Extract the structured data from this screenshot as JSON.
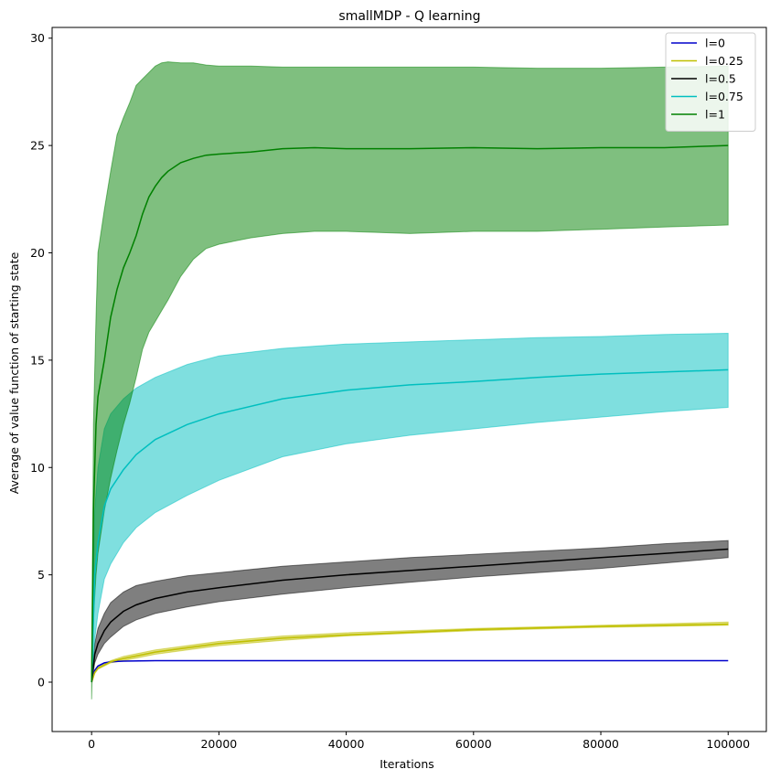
{
  "chart_data": {
    "type": "line",
    "title": "smallMDP - Q learning",
    "xlabel": "Iterations",
    "ylabel": "Average of value function of starting state",
    "xlim": [
      -6200,
      106000
    ],
    "ylim": [
      -2.3,
      30.5
    ],
    "xticks": [
      0,
      20000,
      40000,
      60000,
      80000,
      100000
    ],
    "yticks": [
      0,
      5,
      10,
      15,
      20,
      25,
      30
    ],
    "legend_position": "top-right",
    "grid": false,
    "series": [
      {
        "name": "l=0",
        "color": "#0000cc",
        "x": [
          0,
          500,
          1000,
          2000,
          3000,
          5000,
          10000,
          20000,
          50000,
          100000
        ],
        "mean": [
          0,
          0.55,
          0.75,
          0.9,
          0.95,
          0.98,
          1.0,
          1.0,
          1.0,
          1.0
        ],
        "lower": [
          0,
          0.55,
          0.75,
          0.9,
          0.95,
          0.98,
          1.0,
          1.0,
          1.0,
          1.0
        ],
        "upper": [
          0,
          0.55,
          0.75,
          0.9,
          0.95,
          0.98,
          1.0,
          1.0,
          1.0,
          1.0
        ]
      },
      {
        "name": "l=0.25",
        "color": "#bfbf00",
        "x": [
          0,
          500,
          1000,
          3000,
          5000,
          10000,
          20000,
          30000,
          40000,
          60000,
          80000,
          100000
        ],
        "mean": [
          0,
          0.45,
          0.65,
          0.95,
          1.1,
          1.4,
          1.8,
          2.05,
          2.2,
          2.45,
          2.6,
          2.7
        ],
        "lower": [
          0,
          0.4,
          0.6,
          0.9,
          1.0,
          1.3,
          1.7,
          1.95,
          2.15,
          2.4,
          2.55,
          2.65
        ],
        "upper": [
          0,
          0.5,
          0.7,
          1.0,
          1.2,
          1.5,
          1.9,
          2.15,
          2.3,
          2.5,
          2.65,
          2.8
        ]
      },
      {
        "name": "l=0.5",
        "color": "#000000",
        "x": [
          0,
          500,
          1000,
          2000,
          3000,
          5000,
          7000,
          10000,
          15000,
          20000,
          30000,
          40000,
          50000,
          60000,
          70000,
          80000,
          90000,
          100000
        ],
        "mean": [
          0,
          1.3,
          1.8,
          2.4,
          2.8,
          3.3,
          3.6,
          3.9,
          4.2,
          4.4,
          4.75,
          5.0,
          5.2,
          5.4,
          5.6,
          5.8,
          6.0,
          6.2
        ],
        "lower": [
          0,
          0.9,
          1.3,
          1.8,
          2.1,
          2.6,
          2.9,
          3.2,
          3.5,
          3.75,
          4.1,
          4.4,
          4.65,
          4.9,
          5.1,
          5.3,
          5.55,
          5.8
        ],
        "upper": [
          0,
          1.8,
          2.5,
          3.2,
          3.7,
          4.2,
          4.5,
          4.7,
          4.95,
          5.1,
          5.4,
          5.6,
          5.8,
          5.95,
          6.1,
          6.25,
          6.45,
          6.6
        ]
      },
      {
        "name": "l=0.75",
        "color": "#00bfbf",
        "x": [
          0,
          500,
          1000,
          2000,
          3000,
          5000,
          7000,
          10000,
          15000,
          20000,
          30000,
          40000,
          50000,
          60000,
          70000,
          80000,
          90000,
          100000
        ],
        "mean": [
          0,
          5.0,
          6.5,
          8.2,
          9.0,
          9.9,
          10.6,
          11.3,
          12.0,
          12.5,
          13.2,
          13.6,
          13.85,
          14.0,
          14.2,
          14.35,
          14.45,
          14.55
        ],
        "lower": [
          0,
          2.0,
          3.2,
          4.8,
          5.5,
          6.5,
          7.2,
          7.9,
          8.7,
          9.4,
          10.5,
          11.1,
          11.5,
          11.8,
          12.1,
          12.35,
          12.6,
          12.8
        ],
        "upper": [
          0,
          8.0,
          10.0,
          11.8,
          12.5,
          13.2,
          13.7,
          14.2,
          14.8,
          15.2,
          15.55,
          15.75,
          15.85,
          15.95,
          16.05,
          16.1,
          16.2,
          16.25
        ]
      },
      {
        "name": "l=1",
        "color": "#008000",
        "x": [
          0,
          300,
          700,
          1000,
          2000,
          3000,
          4000,
          5000,
          6000,
          7000,
          8000,
          9000,
          10000,
          11000,
          12000,
          14000,
          16000,
          18000,
          20000,
          25000,
          30000,
          35000,
          40000,
          50000,
          60000,
          70000,
          80000,
          90000,
          100000
        ],
        "mean": [
          0,
          8.0,
          12.0,
          13.3,
          15.0,
          17.0,
          18.3,
          19.3,
          20.0,
          20.8,
          21.8,
          22.6,
          23.1,
          23.5,
          23.8,
          24.2,
          24.4,
          24.55,
          24.6,
          24.7,
          24.85,
          24.9,
          24.85,
          24.85,
          24.9,
          24.85,
          24.9,
          24.9,
          25.0
        ],
        "lower": [
          -0.8,
          3.0,
          5.0,
          6.0,
          8.0,
          9.5,
          10.8,
          12.0,
          13.0,
          14.2,
          15.5,
          16.3,
          16.8,
          17.3,
          17.8,
          18.9,
          19.7,
          20.2,
          20.4,
          20.7,
          20.9,
          21.0,
          21.0,
          20.9,
          21.0,
          21.0,
          21.1,
          21.2,
          21.3
        ],
        "upper": [
          0,
          12.0,
          17.0,
          20.0,
          22.0,
          23.8,
          25.5,
          26.3,
          27.0,
          27.8,
          28.1,
          28.4,
          28.7,
          28.85,
          28.9,
          28.85,
          28.85,
          28.75,
          28.7,
          28.7,
          28.65,
          28.65,
          28.65,
          28.65,
          28.65,
          28.6,
          28.6,
          28.65,
          28.7
        ]
      }
    ]
  }
}
